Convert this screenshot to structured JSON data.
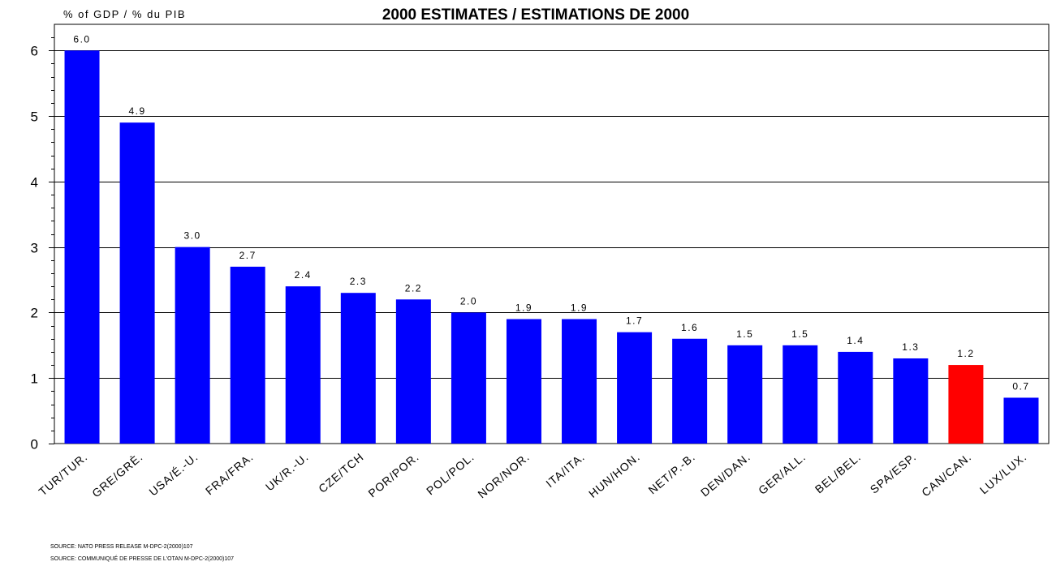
{
  "chart_data": {
    "type": "bar",
    "title": "2000 ESTIMATES / ESTIMATIONS DE 2000",
    "ylabel": "% of GDP / % du PIB",
    "xlabel": "",
    "categories": [
      "TUR/TUR.",
      "GRE/GRÈ.",
      "USA/É.-U.",
      "FRA/FRA.",
      "UK/R.-U.",
      "CZE/TCH",
      "POR/POR.",
      "POL/POL.",
      "NOR/NOR.",
      "ITA/ITA.",
      "HUN/HON.",
      "NET/P.-B.",
      "DEN/DAN.",
      "GER/ALL.",
      "BEL/BEL.",
      "SPA/ESP.",
      "CAN/CAN.",
      "LUX/LUX."
    ],
    "values": [
      6.0,
      4.9,
      3.0,
      2.7,
      2.4,
      2.3,
      2.2,
      2.0,
      1.9,
      1.9,
      1.7,
      1.6,
      1.5,
      1.5,
      1.4,
      1.3,
      1.2,
      0.7
    ],
    "data_labels": [
      "6.0",
      "4.9",
      "3.0",
      "2.7",
      "2.4",
      "2.3",
      "2.2",
      "2.0",
      "1.9",
      "1.9",
      "1.7",
      "1.6",
      "1.5",
      "1.5",
      "1.4",
      "1.3",
      "1.2",
      "0.7"
    ],
    "bar_colors": [
      "#0000ff",
      "#0000ff",
      "#0000ff",
      "#0000ff",
      "#0000ff",
      "#0000ff",
      "#0000ff",
      "#0000ff",
      "#0000ff",
      "#0000ff",
      "#0000ff",
      "#0000ff",
      "#0000ff",
      "#0000ff",
      "#0000ff",
      "#0000ff",
      "#ff0000",
      "#0000ff"
    ],
    "yticks": [
      0,
      1,
      2,
      3,
      4,
      5,
      6
    ],
    "ylim": [
      0,
      6.4
    ],
    "grid": true,
    "legend": "none"
  },
  "footer": {
    "source_en": "SOURCE: NATO PRESS RELEASE M-DPC-2(2000)107",
    "source_fr": "SOURCE: COMMUNIQUÉ DE PRESSE DE L'OTAN M-DPC-2(2000)107"
  }
}
